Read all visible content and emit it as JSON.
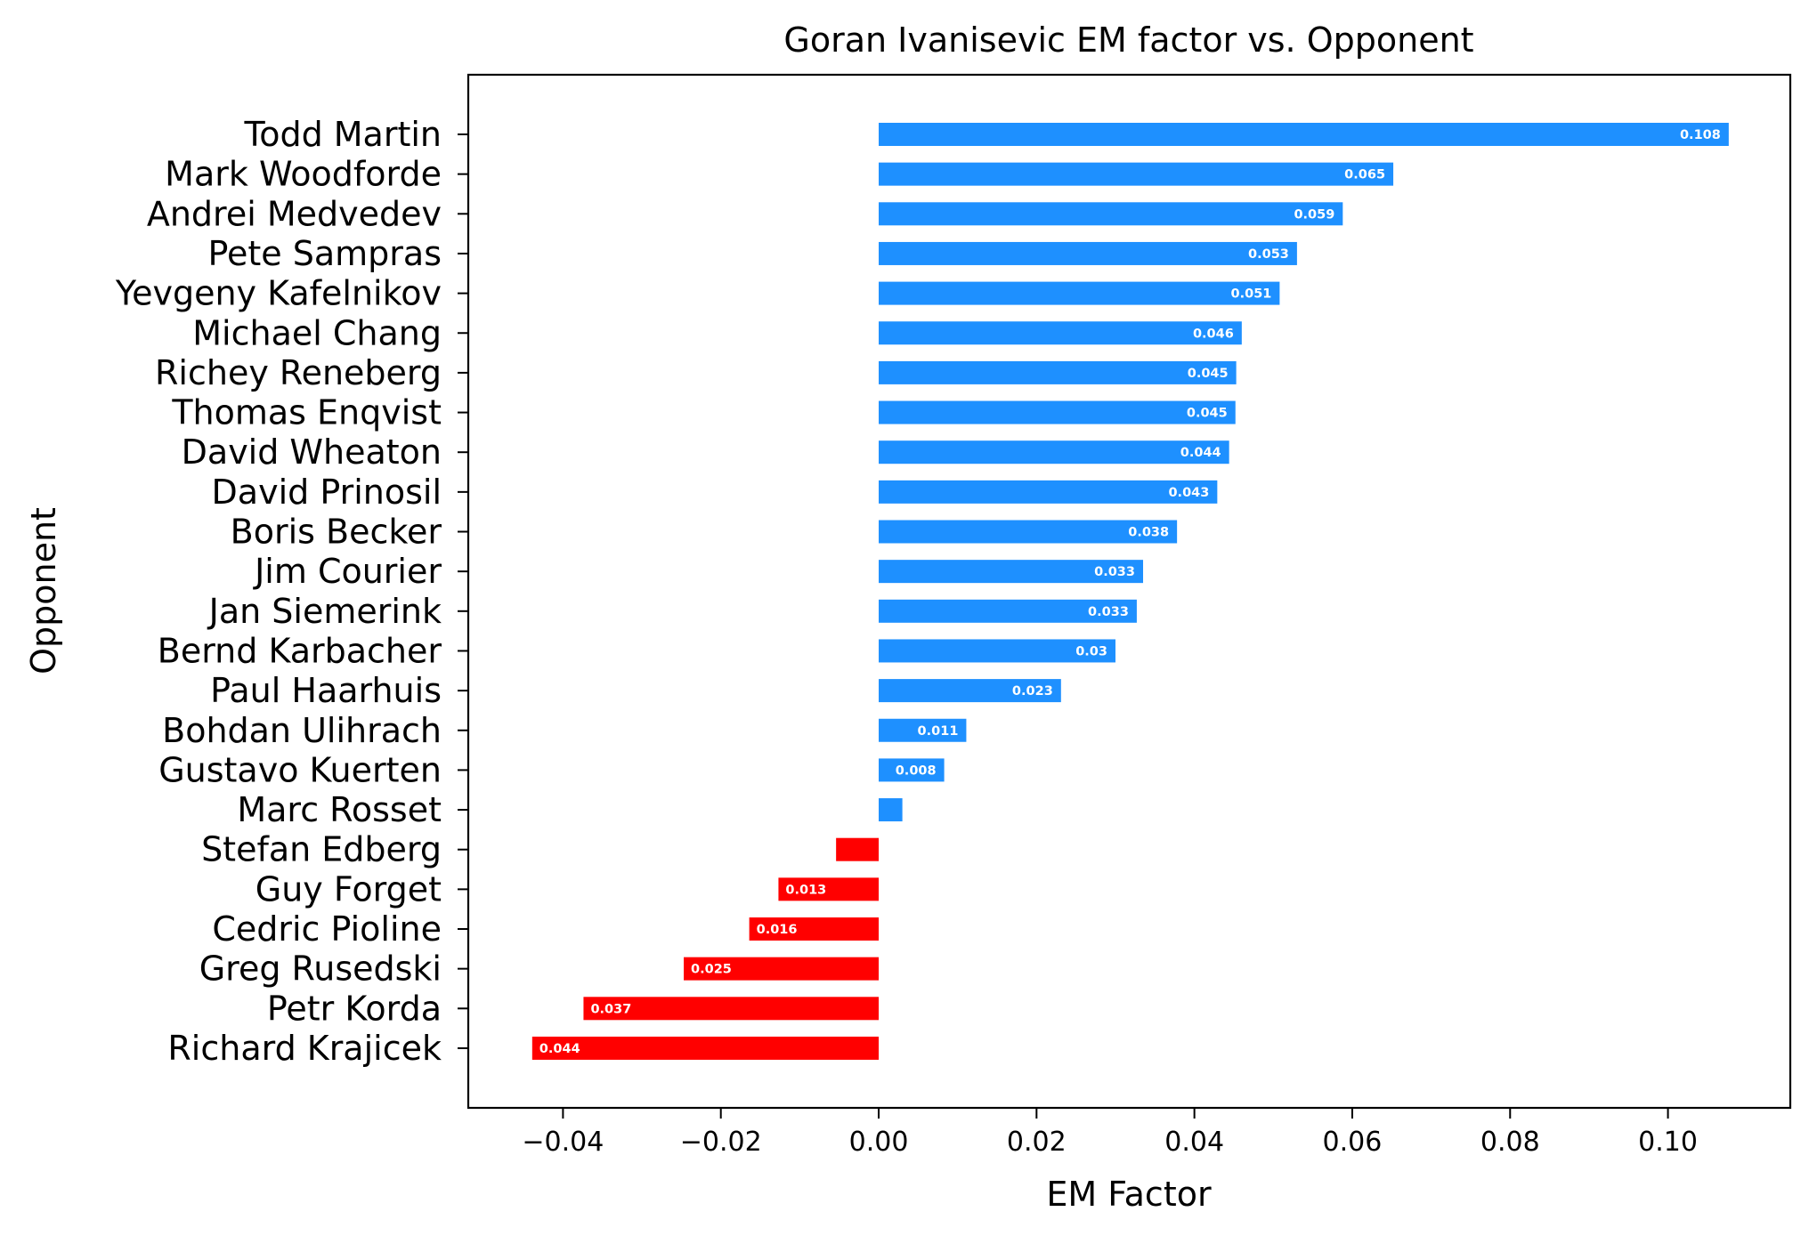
{
  "chart_data": {
    "type": "bar",
    "orientation": "horizontal",
    "title": "Goran Ivanisevic EM factor vs. Opponent",
    "xlabel": "EM Factor",
    "ylabel": "Opponent",
    "xlim": [
      -0.052,
      0.1155
    ],
    "xticks": [
      -0.04,
      -0.02,
      0.0,
      0.02,
      0.04,
      0.06,
      0.08,
      0.1
    ],
    "xtick_labels": [
      "−0.04",
      "−0.02",
      "0.00",
      "0.02",
      "0.04",
      "0.06",
      "0.08",
      "0.10"
    ],
    "grid": false,
    "colors": {
      "positive": "#1e90ff",
      "negative": "#ff0000"
    },
    "categories": [
      "Todd Martin",
      "Mark Woodforde",
      "Andrei Medvedev",
      "Pete Sampras",
      "Yevgeny Kafelnikov",
      "Michael Chang",
      "Richey Reneberg",
      "Thomas Enqvist",
      "David Wheaton",
      "David Prinosil",
      "Boris Becker",
      "Jim Courier",
      "Jan Siemerink",
      "Bernd Karbacher",
      "Paul Haarhuis",
      "Bohdan Ulihrach",
      "Gustavo Kuerten",
      "Marc Rosset",
      "Stefan Edberg",
      "Guy Forget",
      "Cedric Pioline",
      "Greg Rusedski",
      "Petr Korda",
      "Richard Krajicek"
    ],
    "values": [
      0.1077,
      0.0652,
      0.0588,
      0.053,
      0.0508,
      0.046,
      0.0453,
      0.0452,
      0.0444,
      0.0429,
      0.0378,
      0.0335,
      0.0327,
      0.03,
      0.0231,
      0.0111,
      0.0083,
      0.003,
      -0.0054,
      -0.0127,
      -0.0164,
      -0.0247,
      -0.0374,
      -0.0439
    ],
    "data_labels": [
      "0.108",
      "0.065",
      "0.059",
      "0.053",
      "0.051",
      "0.046",
      "0.045",
      "0.045",
      "0.044",
      "0.043",
      "0.038",
      "0.033",
      "0.033",
      "0.03",
      "0.023",
      "0.011",
      "0.008",
      "",
      "",
      "0.013",
      "0.016",
      "0.025",
      "0.037",
      "0.044"
    ]
  }
}
